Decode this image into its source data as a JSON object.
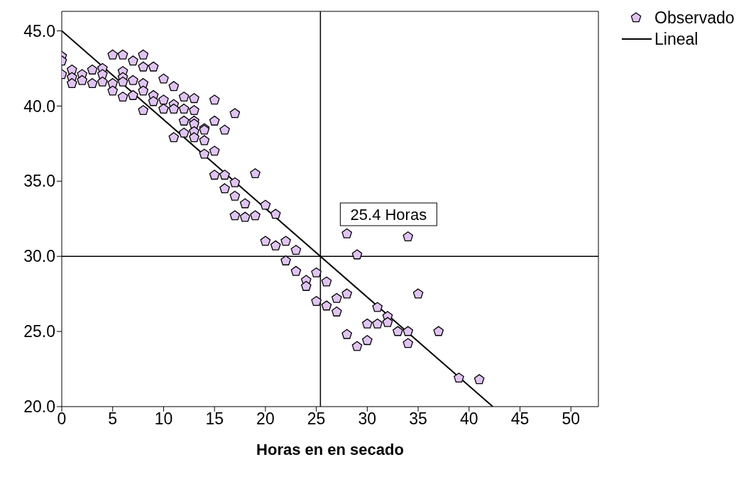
{
  "chart_data": {
    "type": "scatter",
    "xlabel": "Horas en en secado",
    "xlim": [
      0,
      52.7
    ],
    "xticks": [
      0,
      5,
      10,
      15,
      20,
      25,
      30,
      35,
      40,
      45,
      50
    ],
    "ylim": [
      20,
      46.3
    ],
    "yticks": [
      {
        "value": 20,
        "label": "20.0"
      },
      {
        "value": 25,
        "label": "25.0"
      },
      {
        "value": 30,
        "label": "30.0"
      },
      {
        "value": 35,
        "label": "35.0"
      },
      {
        "value": 40,
        "label": "40.0"
      },
      {
        "value": 45,
        "label": "45.0"
      }
    ],
    "grid": false,
    "legend": "top right",
    "series": [
      {
        "name": "Observado",
        "color": "#e0c4f2",
        "x": [
          0,
          0,
          0,
          1,
          1,
          1,
          2,
          2,
          3,
          3,
          4,
          4,
          4,
          5,
          5,
          5,
          6,
          6,
          6,
          6,
          6,
          7,
          7,
          7,
          8,
          8,
          8,
          8,
          8,
          9,
          9,
          9,
          10,
          10,
          10,
          11,
          11,
          11,
          11,
          12,
          12,
          12,
          12,
          13,
          13,
          13,
          13,
          13,
          13,
          14,
          14,
          14,
          14,
          15,
          15,
          15,
          15,
          16,
          16,
          16,
          17,
          17,
          17,
          17,
          18,
          18,
          19,
          19,
          20,
          20,
          21,
          21,
          22,
          22,
          23,
          23,
          24,
          24,
          25,
          25,
          26,
          26,
          27,
          27,
          28,
          28,
          28,
          29,
          29,
          30,
          30,
          31,
          31,
          32,
          32,
          33,
          34,
          34,
          34,
          35,
          37,
          39,
          41
        ],
        "values": [
          43.3,
          43.0,
          42.1,
          42.4,
          41.9,
          41.5,
          42.1,
          41.7,
          42.4,
          41.5,
          42.5,
          42.1,
          41.6,
          43.4,
          41.5,
          41.0,
          43.4,
          42.3,
          41.9,
          41.6,
          40.6,
          43.0,
          41.7,
          40.7,
          43.4,
          42.6,
          41.5,
          41.0,
          39.7,
          42.6,
          40.7,
          40.3,
          41.8,
          40.4,
          39.8,
          41.3,
          40.1,
          39.8,
          37.9,
          40.6,
          39.8,
          39.0,
          38.2,
          40.5,
          39.7,
          39.0,
          38.8,
          38.3,
          37.9,
          38.5,
          38.4,
          37.7,
          36.8,
          40.4,
          39.0,
          37.0,
          35.4,
          38.4,
          35.4,
          34.5,
          39.5,
          34.9,
          34.0,
          32.7,
          33.5,
          32.6,
          35.5,
          32.7,
          33.4,
          31.0,
          32.8,
          30.7,
          31.0,
          29.7,
          30.4,
          29.0,
          28.4,
          28.0,
          28.9,
          27.0,
          28.3,
          26.7,
          27.2,
          26.3,
          31.5,
          27.5,
          24.8,
          30.1,
          24.0,
          25.5,
          24.4,
          26.6,
          25.5,
          26.0,
          25.6,
          25.0,
          31.3,
          25.0,
          24.2,
          27.5,
          25.0,
          21.9,
          21.8
        ]
      },
      {
        "name": "Lineal",
        "type": "line",
        "color": "#000000",
        "x": [
          0,
          42.33
        ],
        "values": [
          45,
          20
        ]
      }
    ],
    "ref_lines": [
      {
        "axis": "x",
        "value": 25.4,
        "label": "25.4 Horas",
        "color": "#000000"
      },
      {
        "axis": "y",
        "value": 30,
        "color": "#000000"
      }
    ]
  }
}
